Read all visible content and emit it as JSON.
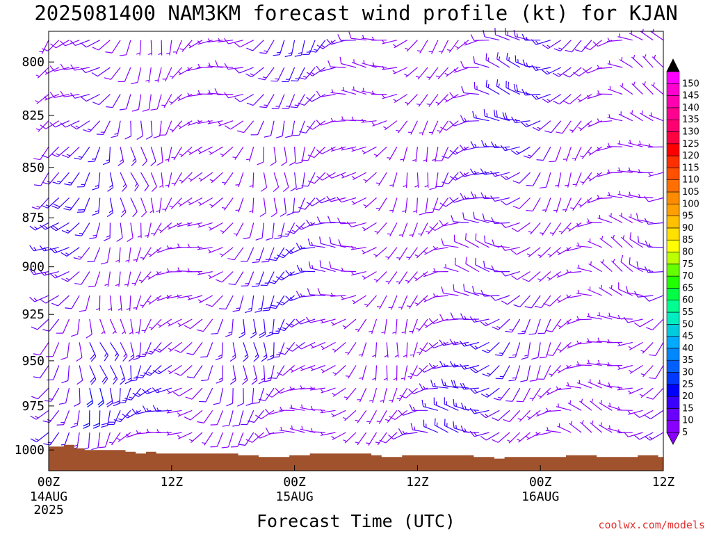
{
  "chart_data": {
    "type": "wind_barb_time_height",
    "title": "2025081400 NAM3KM forecast wind profile (kt) for KJAN",
    "xlabel": "Forecast Time (UTC)",
    "ylabel": "",
    "units": "kt",
    "y_axis": {
      "scale": "pressure (hPa), inverted",
      "ylim": [
        1012,
        786
      ],
      "ticks": [
        "800",
        "825",
        "850",
        "875",
        "900",
        "925",
        "950",
        "975",
        "1000"
      ]
    },
    "x_axis": {
      "range_hours": [
        0,
        60
      ],
      "step_hours": 1,
      "ticks": [
        {
          "hour": 0,
          "label": "00Z",
          "date": "14AUG",
          "year": "2025"
        },
        {
          "hour": 12,
          "label": "12Z",
          "date": "",
          "year": ""
        },
        {
          "hour": 24,
          "label": "00Z",
          "date": "15AUG",
          "year": ""
        },
        {
          "hour": 36,
          "label": "12Z",
          "date": "",
          "year": ""
        },
        {
          "hour": 48,
          "label": "00Z",
          "date": "16AUG",
          "year": ""
        },
        {
          "hour": 60,
          "label": "12Z",
          "date": "",
          "year": ""
        }
      ]
    },
    "surface_pressure_hPa": [
      998,
      998,
      997,
      999,
      1000,
      1000,
      1000,
      1000,
      1001,
      1002,
      1001,
      1002,
      1002,
      1002,
      1002,
      1002,
      1002,
      1002,
      1002,
      1003,
      1003,
      1004,
      1004,
      1004,
      1003,
      1003,
      1002,
      1002,
      1002,
      1002,
      1002,
      1002,
      1003,
      1004,
      1004,
      1003,
      1003,
      1003,
      1003,
      1003,
      1003,
      1003,
      1004,
      1004,
      1005,
      1004,
      1004,
      1004,
      1004,
      1004,
      1004,
      1003,
      1003,
      1003,
      1004,
      1004,
      1004,
      1004,
      1003,
      1003,
      1004
    ],
    "wind_speed_colorbar": {
      "values": [
        5,
        10,
        15,
        20,
        25,
        30,
        35,
        40,
        45,
        50,
        55,
        60,
        65,
        70,
        75,
        80,
        85,
        90,
        95,
        100,
        105,
        110,
        115,
        120,
        125,
        130,
        135,
        140,
        145,
        150
      ],
      "labels": [
        "5",
        "10",
        "15",
        "20",
        "25",
        "30",
        "35",
        "40",
        "45",
        "50",
        "55",
        "60",
        "65",
        "70",
        "75",
        "80",
        "85",
        "90",
        "95",
        "100",
        "105",
        "110",
        "115",
        "120",
        "125",
        "130",
        "135",
        "140",
        "145",
        "150"
      ],
      "colors": [
        "#8a00ff",
        "#6a00ff",
        "#3a00ff",
        "#0000ff",
        "#0038ff",
        "#0060ff",
        "#0088ff",
        "#00aaff",
        "#00ccdd",
        "#00eec0",
        "#00ff90",
        "#00ff44",
        "#22ff00",
        "#66ff00",
        "#bbff00",
        "#ffff00",
        "#ffe000",
        "#ffc000",
        "#ffa000",
        "#ff8c00",
        "#ff7000",
        "#ff5000",
        "#ff3000",
        "#ff0000",
        "#ff0040",
        "#ff0070",
        "#ff0090",
        "#ff00b0",
        "#ff00d0",
        "#ff00ff"
      ],
      "top_arrow_color": "#000000",
      "bottom_arrow_color": "#8a00ff"
    },
    "ground_color": "#a0522d",
    "credit": "coolwx.com/models"
  }
}
